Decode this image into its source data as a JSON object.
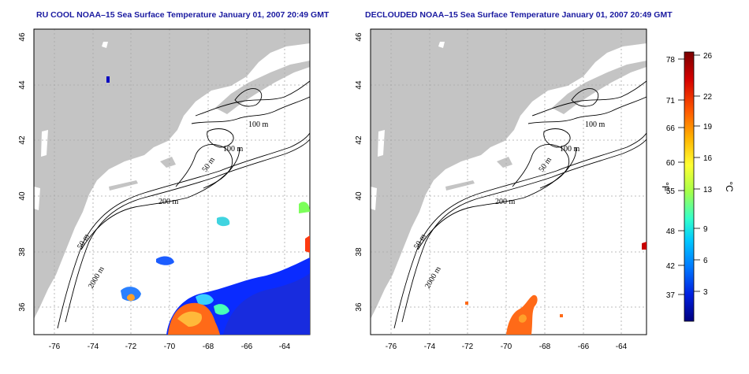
{
  "titles": {
    "left": "RU COOL NOAA–15 Sea Surface Temperature January 01, 2007 20:49 GMT",
    "right": "DECLOUDED NOAA–15 Sea Surface Temperature January 01, 2007 20:49 GMT"
  },
  "axes": {
    "x_ticks": [
      -76,
      -74,
      -72,
      -70,
      -68,
      -66,
      -64
    ],
    "y_ticks": [
      36,
      38,
      40,
      42,
      44,
      46
    ],
    "x_range": [
      -77.2,
      -63.0
    ],
    "y_range": [
      35.0,
      46.0
    ]
  },
  "contour_labels": {
    "c100a": "100 m",
    "c100b": "100 m",
    "c50": "50 m",
    "c200": "200 m",
    "c50b": "50 m",
    "c2000": "2000 m"
  },
  "colorbar": {
    "fahrenheit_ticks": [
      "78",
      "71",
      "66",
      "60",
      "55",
      "48",
      "42",
      "37"
    ],
    "celsius_ticks": [
      "26",
      "22",
      "19",
      "16",
      "13",
      "9",
      "6",
      "3"
    ],
    "fahrenheit_unit": "°F",
    "celsius_unit": "°C",
    "colors": [
      "#7a0000",
      "#d40000",
      "#ff5a00",
      "#ffb400",
      "#ffff33",
      "#a4ff4a",
      "#33ffcc",
      "#00c8ff",
      "#0078ff",
      "#0020e0",
      "#000080"
    ]
  },
  "colors": {
    "land": "#c4c4c4",
    "grid": "#a8a8a8",
    "title": "#1a1aa0"
  }
}
